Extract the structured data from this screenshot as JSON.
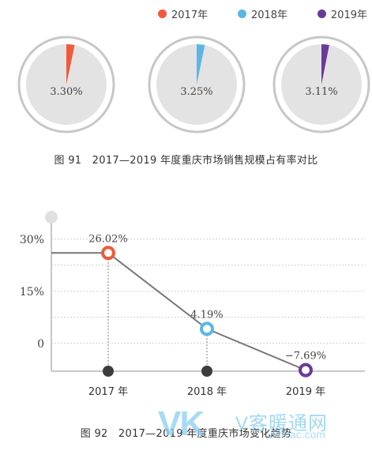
{
  "legend": [
    {
      "label": "2017年",
      "color": "#f05a3a"
    },
    {
      "label": "2018年",
      "color": "#5bb6e6"
    },
    {
      "label": "2019年",
      "color": "#6a3a9a"
    }
  ],
  "captions": {
    "pie": "图 91　2017—2019 年度重庆市场销售规模占有率对比",
    "line": "图 92　2017—2019 年度重庆市场变化趋势"
  },
  "watermark": {
    "brand": "VK",
    "cn": "V客暖通网",
    "url": "vkhvac.com"
  },
  "chart_data": [
    {
      "type": "pie",
      "slices": [
        {
          "label": "3.30%",
          "value": 3.3,
          "color": "#f05a3a"
        },
        {
          "label": "3.25%",
          "value": 3.25,
          "color": "#5bb6e6"
        },
        {
          "label": "3.11%",
          "value": 3.11,
          "color": "#6a3a9a"
        }
      ]
    },
    {
      "type": "line",
      "categories": [
        "2017 年",
        "2018 年",
        "2019 年"
      ],
      "values": [
        26.02,
        4.19,
        -7.69
      ],
      "data_labels": [
        "26.02%",
        "4.19%",
        "−7.69%"
      ],
      "marker_colors": [
        "#f05a3a",
        "#5bb6e6",
        "#6a3a9a"
      ],
      "yticks": [
        "30%",
        "15%",
        "0"
      ],
      "ytick_values": [
        30,
        15,
        0
      ],
      "ylim": [
        -8,
        37
      ],
      "grid": true
    }
  ]
}
